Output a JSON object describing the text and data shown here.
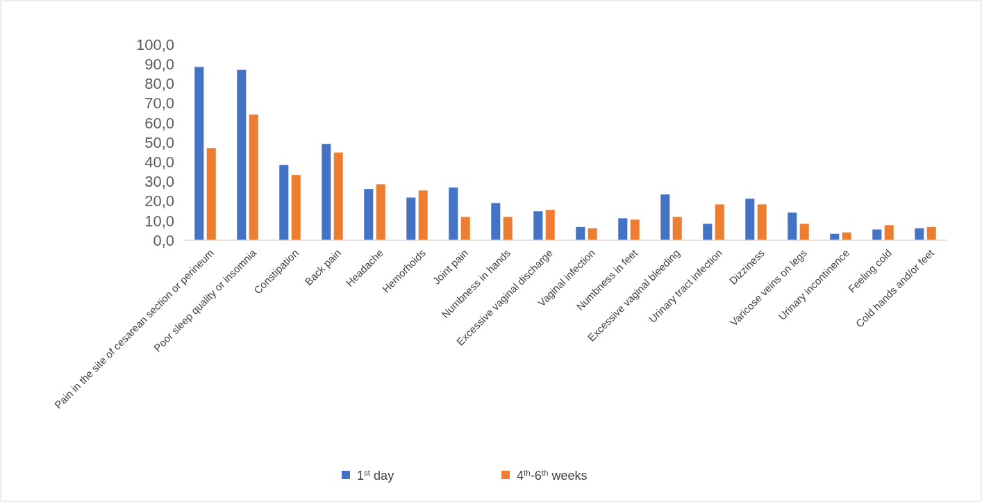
{
  "chart_data": {
    "type": "bar",
    "categories": [
      "Pain in the site of cesarean section or perineum",
      "Poor sleep quality or insomnia",
      "Constipation",
      "Back pain",
      "Headache",
      "Hemorhoids",
      "Joint pain",
      "Numbness in hands",
      "Excessive vaginal discharge",
      "Vaginal infection",
      "Numbness in feet",
      "Excessive vaginal bleeding",
      "Urinary tract infection",
      "Dizziness",
      "Varicose veins on legs",
      "Urinary incontinence",
      "Feeling cold",
      "Cold hands and/or feet"
    ],
    "series": [
      {
        "name": "1$^{st}$ day",
        "color": "#4472c4",
        "values": [
          88.5,
          87.0,
          38.4,
          49.2,
          26.2,
          21.8,
          26.9,
          19.0,
          14.8,
          6.8,
          11.2,
          23.4,
          8.4,
          21.2,
          14.1,
          3.3,
          5.5,
          6.1
        ]
      },
      {
        "name": "4$^{th}$-6$^{th}$ weeks",
        "color": "#ed7d31",
        "values": [
          47.1,
          64.2,
          33.3,
          44.8,
          28.6,
          25.4,
          11.9,
          11.9,
          15.5,
          6.1,
          10.5,
          11.9,
          18.3,
          18.3,
          8.4,
          4.0,
          7.7,
          6.8
        ]
      }
    ],
    "ylim": [
      0,
      100
    ],
    "yticks": [
      {
        "value": 0,
        "label": "0,0"
      },
      {
        "value": 10,
        "label": "10,0"
      },
      {
        "value": 20,
        "label": "20,0"
      },
      {
        "value": 30,
        "label": "30,0"
      },
      {
        "value": 40,
        "label": "40,0"
      },
      {
        "value": 50,
        "label": "50,0"
      },
      {
        "value": 60,
        "label": "60,0"
      },
      {
        "value": 70,
        "label": "70,0"
      },
      {
        "value": 80,
        "label": "80,0"
      },
      {
        "value": 90,
        "label": "90,0"
      },
      {
        "value": 100,
        "label": "100,0"
      }
    ],
    "grid": false,
    "legend": "bottom"
  }
}
